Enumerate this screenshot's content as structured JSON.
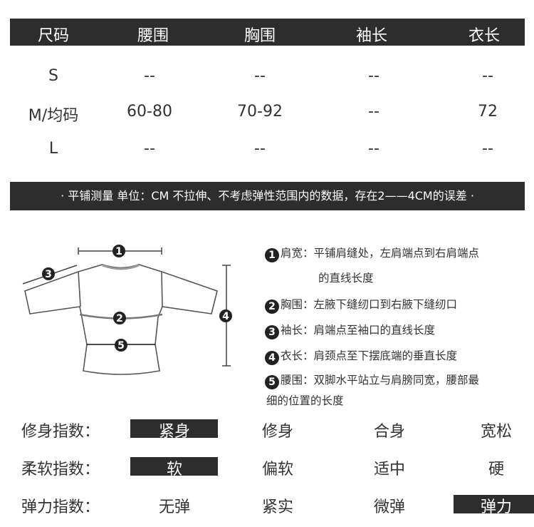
{
  "size_table": {
    "headers": [
      "尺码",
      "腰围",
      "胸围",
      "袖长",
      "衣长"
    ],
    "rows": [
      [
        "S",
        "--",
        "--",
        "--",
        "--"
      ],
      [
        "M/均码",
        "60-80",
        "70-92",
        "--",
        "72"
      ],
      [
        "L",
        "--",
        "--",
        "--",
        "--"
      ]
    ]
  },
  "note": "· 平铺测量 单位：CM 不拉伸、不考虑弹性范围内的数据，存在2——4CM的误差 ·",
  "diagram": {
    "markers": [
      "1",
      "2",
      "3",
      "4",
      "5"
    ],
    "legend": [
      {
        "num": "1",
        "text": "肩宽：平铺肩缝处，左肩端点到右肩端点",
        "cont": "的直线长度"
      },
      {
        "num": "2",
        "text": "胸围：左腋下缝纫口到右腋下缝纫口"
      },
      {
        "num": "3",
        "text": "袖长：肩端点至袖口的直线长度"
      },
      {
        "num": "4",
        "text": "衣长：肩颈点至下摆底端的垂直长度"
      },
      {
        "num": "5",
        "text": "腰围：双脚水平站立与肩膀同宽，腰部最",
        "cont": "细的位置的长度"
      }
    ]
  },
  "indices": [
    {
      "label": "修身指数：",
      "options": [
        "紧身",
        "修身",
        "合身",
        "宽松"
      ],
      "selected": 0
    },
    {
      "label": "柔软指数：",
      "options": [
        "软",
        "偏软",
        "适中",
        "硬"
      ],
      "selected": 0
    },
    {
      "label": "弹力指数：",
      "options": [
        "无弹",
        "紧实",
        "微弹",
        "弹力"
      ],
      "selected": 3
    }
  ],
  "colors": {
    "dark_bar": "#2d2d2d",
    "text": "#333333"
  }
}
